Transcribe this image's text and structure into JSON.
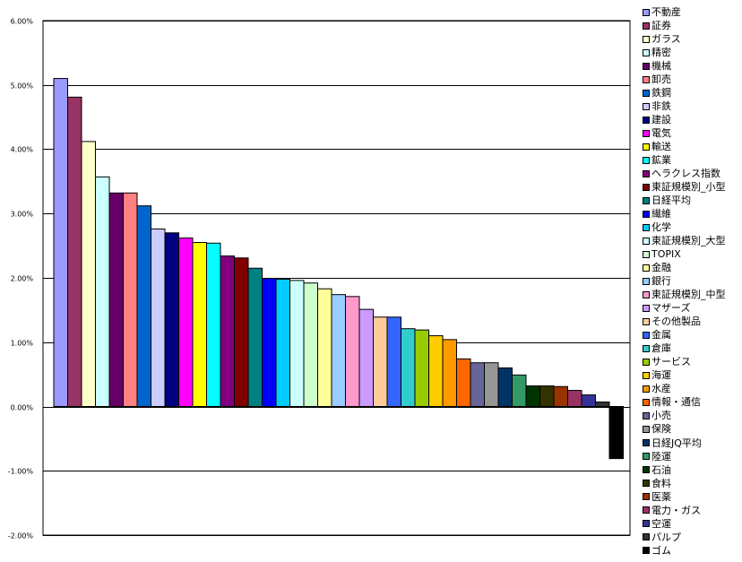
{
  "chart_data": {
    "type": "bar",
    "title": "",
    "xlabel": "",
    "ylabel": "",
    "ylim": [
      -0.02,
      0.06
    ],
    "yticks": [
      "6.00%",
      "5.00%",
      "4.00%",
      "3.00%",
      "2.00%",
      "1.00%",
      "0.00%",
      "-1.00%",
      "-2.00%"
    ],
    "ytick_values": [
      0.06,
      0.05,
      0.04,
      0.03,
      0.02,
      0.01,
      0,
      -0.01,
      -0.02
    ],
    "grid": true,
    "legend_position": "right",
    "series": [
      {
        "name": "不動産",
        "value": 0.051,
        "color": "#9999FF"
      },
      {
        "name": "証券",
        "value": 0.0481,
        "color": "#993366"
      },
      {
        "name": "ガラス",
        "value": 0.0412,
        "color": "#FFFFCC"
      },
      {
        "name": "精密",
        "value": 0.0357,
        "color": "#CCFFFF"
      },
      {
        "name": "機械",
        "value": 0.0332,
        "color": "#660066"
      },
      {
        "name": "卸売",
        "value": 0.0332,
        "color": "#FF8080"
      },
      {
        "name": "鉄鋼",
        "value": 0.0312,
        "color": "#0066CC"
      },
      {
        "name": "非鉄",
        "value": 0.0276,
        "color": "#CCCCFF"
      },
      {
        "name": "建設",
        "value": 0.027,
        "color": "#000080"
      },
      {
        "name": "電気",
        "value": 0.0262,
        "color": "#FF00FF"
      },
      {
        "name": "輸送",
        "value": 0.0255,
        "color": "#FFFF00"
      },
      {
        "name": "鉱業",
        "value": 0.0254,
        "color": "#00FFFF"
      },
      {
        "name": "ヘラクレス指数",
        "value": 0.0234,
        "color": "#800080"
      },
      {
        "name": "東証規模別_小型",
        "value": 0.0231,
        "color": "#800000"
      },
      {
        "name": "日経平均",
        "value": 0.0215,
        "color": "#008080"
      },
      {
        "name": "繊維",
        "value": 0.0199,
        "color": "#0000FF"
      },
      {
        "name": "化学",
        "value": 0.0198,
        "color": "#00CCFF"
      },
      {
        "name": "東証規模別_大型",
        "value": 0.0196,
        "color": "#CCFFFF"
      },
      {
        "name": "TOPIX",
        "value": 0.0192,
        "color": "#CCFFCC"
      },
      {
        "name": "金融",
        "value": 0.0183,
        "color": "#FFFF99"
      },
      {
        "name": "銀行",
        "value": 0.0174,
        "color": "#99CCFF"
      },
      {
        "name": "東証規模別_中型",
        "value": 0.0171,
        "color": "#FF99CC"
      },
      {
        "name": "マザーズ",
        "value": 0.0151,
        "color": "#CC99FF"
      },
      {
        "name": "その他製品",
        "value": 0.0139,
        "color": "#FFCC99"
      },
      {
        "name": "金属",
        "value": 0.0139,
        "color": "#3366FF"
      },
      {
        "name": "倉庫",
        "value": 0.0121,
        "color": "#33CCCC"
      },
      {
        "name": "サービス",
        "value": 0.0119,
        "color": "#99CC00"
      },
      {
        "name": "海運",
        "value": 0.011,
        "color": "#FFCC00"
      },
      {
        "name": "水産",
        "value": 0.0104,
        "color": "#FF9900"
      },
      {
        "name": "情報・通信",
        "value": 0.0074,
        "color": "#FF6600"
      },
      {
        "name": "小売",
        "value": 0.0068,
        "color": "#666699"
      },
      {
        "name": "保険",
        "value": 0.0068,
        "color": "#969696"
      },
      {
        "name": "日経JQ平均",
        "value": 0.006,
        "color": "#003366"
      },
      {
        "name": "陸運",
        "value": 0.0049,
        "color": "#339966"
      },
      {
        "name": "石油",
        "value": 0.0032,
        "color": "#003300"
      },
      {
        "name": "食料",
        "value": 0.0032,
        "color": "#333300"
      },
      {
        "name": "医薬",
        "value": 0.0031,
        "color": "#993300"
      },
      {
        "name": "電力・ガス",
        "value": 0.0025,
        "color": "#993366"
      },
      {
        "name": "空運",
        "value": 0.0018,
        "color": "#333399"
      },
      {
        "name": "パルプ",
        "value": 0.0007,
        "color": "#333333"
      },
      {
        "name": "ゴム",
        "value": -0.0081,
        "color": "#000000"
      }
    ]
  }
}
